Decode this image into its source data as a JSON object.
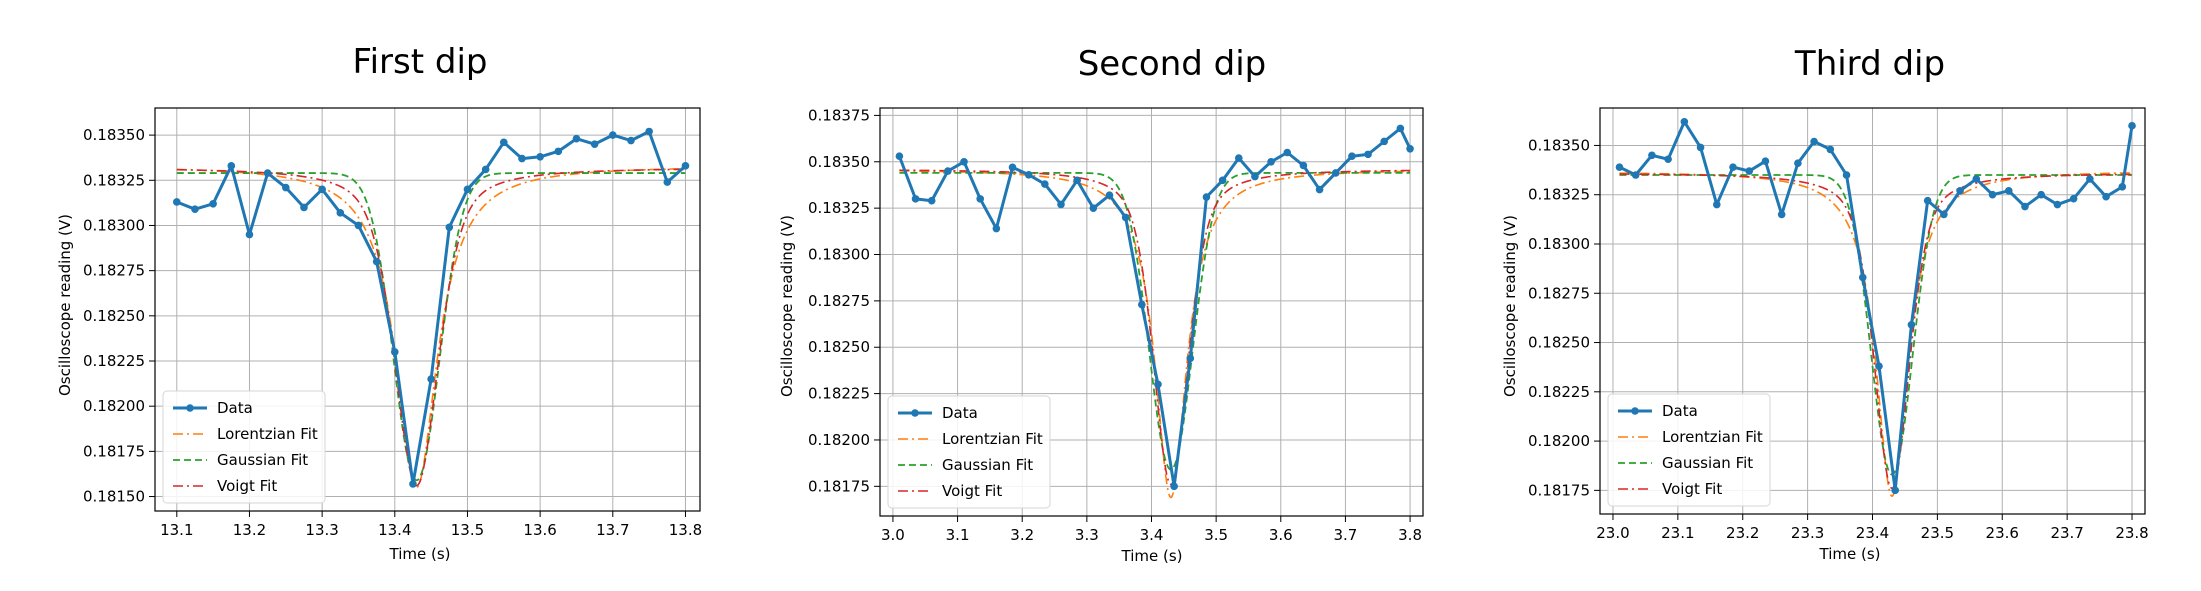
{
  "colors": {
    "data": "#1f77b4",
    "lorentzian": "#ff7f0e",
    "gaussian": "#2ca02c",
    "voigt": "#d62728",
    "grid": "#b0b0b0",
    "axis": "#000000"
  },
  "chart_data": [
    {
      "type": "line",
      "title": "First dip",
      "xlabel": "Time (s)",
      "ylabel": "Oscilloscope reading (V)",
      "xlim": [
        13.07,
        13.82
      ],
      "ylim": [
        0.18142,
        0.18365
      ],
      "xticks": [
        13.1,
        13.2,
        13.3,
        13.4,
        13.5,
        13.6,
        13.7,
        13.8
      ],
      "xtick_labels": [
        "13.1",
        "13.2",
        "13.3",
        "13.4",
        "13.5",
        "13.6",
        "13.7",
        "13.8"
      ],
      "yticks": [
        0.1815,
        0.18175,
        0.182,
        0.18225,
        0.1825,
        0.18275,
        0.183,
        0.18325,
        0.1835
      ],
      "ytick_labels": [
        "0.18150",
        "0.18175",
        "0.18200",
        "0.18225",
        "0.18250",
        "0.18275",
        "0.18300",
        "0.18325",
        "0.18350"
      ],
      "grid": true,
      "legend_position": "lower-left",
      "series": [
        {
          "name": "Data",
          "style": "data",
          "x": [
            13.1,
            13.125,
            13.15,
            13.175,
            13.2,
            13.225,
            13.25,
            13.275,
            13.3,
            13.325,
            13.35,
            13.375,
            13.4,
            13.425,
            13.45,
            13.475,
            13.5,
            13.525,
            13.55,
            13.575,
            13.6,
            13.625,
            13.65,
            13.675,
            13.7,
            13.725,
            13.75,
            13.775,
            13.8
          ],
          "y": [
            0.18313,
            0.18309,
            0.18312,
            0.18333,
            0.18295,
            0.18329,
            0.18321,
            0.1831,
            0.1832,
            0.18307,
            0.183,
            0.1828,
            0.1823,
            0.18157,
            0.18215,
            0.18299,
            0.1832,
            0.18331,
            0.18346,
            0.18337,
            0.18338,
            0.18341,
            0.18348,
            0.18345,
            0.1835,
            0.18347,
            0.18352,
            0.18324,
            0.18333
          ]
        },
        {
          "name": "Lorentzian Fit",
          "style": "lorentzian",
          "params": {
            "kind": "lorentzian",
            "x0": 13.43,
            "w": 0.035,
            "depth": 0.00178,
            "base": 0.18333,
            "slope": 0.0
          }
        },
        {
          "name": "Gaussian Fit",
          "style": "gaussian",
          "params": {
            "kind": "gaussian",
            "x0": 13.43,
            "w": 0.04,
            "depth": 0.0017,
            "base": 0.18329,
            "slope": 0.0
          }
        },
        {
          "name": "Voigt Fit",
          "style": "voigt",
          "params": {
            "kind": "voigt",
            "x0": 13.43,
            "w": 0.038,
            "depth": 0.00176,
            "base": 0.18332,
            "slope": 0.0
          }
        }
      ]
    },
    {
      "type": "line",
      "title": "Second dip",
      "xlabel": "Time (s)",
      "ylabel": "Oscilloscope reading (V)",
      "xlim": [
        2.98,
        3.82
      ],
      "ylim": [
        0.18159,
        0.18379
      ],
      "xticks": [
        3.0,
        3.1,
        3.2,
        3.3,
        3.4,
        3.5,
        3.6,
        3.7,
        3.8
      ],
      "xtick_labels": [
        "3.0",
        "3.1",
        "3.2",
        "3.3",
        "3.4",
        "3.5",
        "3.6",
        "3.7",
        "3.8"
      ],
      "yticks": [
        0.18175,
        0.182,
        0.18225,
        0.1825,
        0.18275,
        0.183,
        0.18325,
        0.1835,
        0.18375
      ],
      "ytick_labels": [
        "0.18175",
        "0.18200",
        "0.18225",
        "0.18250",
        "0.18275",
        "0.18300",
        "0.18325",
        "0.18350",
        "0.18375"
      ],
      "grid": true,
      "legend_position": "lower-left",
      "series": [
        {
          "name": "Data",
          "style": "data",
          "x": [
            3.01,
            3.035,
            3.06,
            3.085,
            3.11,
            3.135,
            3.16,
            3.185,
            3.21,
            3.235,
            3.26,
            3.285,
            3.31,
            3.335,
            3.36,
            3.385,
            3.41,
            3.435,
            3.46,
            3.485,
            3.51,
            3.535,
            3.56,
            3.585,
            3.61,
            3.635,
            3.66,
            3.685,
            3.71,
            3.735,
            3.76,
            3.785,
            3.8
          ],
          "y": [
            0.18353,
            0.1833,
            0.18329,
            0.18345,
            0.1835,
            0.1833,
            0.18314,
            0.18347,
            0.18343,
            0.18338,
            0.18327,
            0.1834,
            0.18325,
            0.18332,
            0.1832,
            0.18273,
            0.1823,
            0.18175,
            0.18244,
            0.18331,
            0.1834,
            0.18352,
            0.18342,
            0.1835,
            0.18355,
            0.18348,
            0.18335,
            0.18344,
            0.18353,
            0.18354,
            0.18361,
            0.18368,
            0.18357
          ]
        },
        {
          "name": "Lorentzian Fit",
          "style": "lorentzian",
          "params": {
            "kind": "lorentzian",
            "x0": 3.43,
            "w": 0.03,
            "depth": 0.00177,
            "base": 0.18346,
            "slope": 0.0
          }
        },
        {
          "name": "Gaussian Fit",
          "style": "gaussian",
          "params": {
            "kind": "gaussian",
            "x0": 3.43,
            "w": 0.042,
            "depth": 0.0016,
            "base": 0.18344,
            "slope": 0.0
          }
        },
        {
          "name": "Voigt Fit",
          "style": "voigt",
          "params": {
            "kind": "voigt",
            "x0": 3.43,
            "w": 0.034,
            "depth": 0.0017,
            "base": 0.18346,
            "slope": 0.0
          }
        }
      ]
    },
    {
      "type": "line",
      "title": "Third dip",
      "xlabel": "Time (s)",
      "ylabel": "Oscilloscope reading (V)",
      "xlim": [
        22.98,
        23.82
      ],
      "ylim": [
        0.18163,
        0.18369
      ],
      "xticks": [
        23.0,
        23.1,
        23.2,
        23.3,
        23.4,
        23.5,
        23.6,
        23.7,
        23.8
      ],
      "xtick_labels": [
        "23.0",
        "23.1",
        "23.2",
        "23.3",
        "23.4",
        "23.5",
        "23.6",
        "23.7",
        "23.8"
      ],
      "yticks": [
        0.18175,
        0.182,
        0.18225,
        0.1825,
        0.18275,
        0.183,
        0.18325,
        0.1835
      ],
      "ytick_labels": [
        "0.18175",
        "0.18200",
        "0.18225",
        "0.18250",
        "0.18275",
        "0.18300",
        "0.18325",
        "0.18350"
      ],
      "grid": true,
      "legend_position": "lower-left",
      "series": [
        {
          "name": "Data",
          "style": "data",
          "x": [
            23.01,
            23.035,
            23.06,
            23.085,
            23.11,
            23.135,
            23.16,
            23.185,
            23.21,
            23.235,
            23.26,
            23.285,
            23.31,
            23.335,
            23.36,
            23.385,
            23.41,
            23.435,
            23.46,
            23.485,
            23.51,
            23.535,
            23.56,
            23.585,
            23.61,
            23.635,
            23.66,
            23.685,
            23.71,
            23.735,
            23.76,
            23.785,
            23.8
          ],
          "y": [
            0.18339,
            0.18335,
            0.18345,
            0.18343,
            0.18362,
            0.18349,
            0.1832,
            0.18339,
            0.18337,
            0.18342,
            0.18315,
            0.18341,
            0.18352,
            0.18348,
            0.18335,
            0.18283,
            0.18238,
            0.18175,
            0.18259,
            0.18322,
            0.18315,
            0.18327,
            0.18333,
            0.18325,
            0.18327,
            0.18319,
            0.18325,
            0.1832,
            0.18323,
            0.18333,
            0.18324,
            0.18329,
            0.1836
          ]
        },
        {
          "name": "Lorentzian Fit",
          "style": "lorentzian",
          "params": {
            "kind": "lorentzian",
            "x0": 23.43,
            "w": 0.03,
            "depth": 0.00165,
            "base": 0.18337,
            "slope": 5e-06
          }
        },
        {
          "name": "Gaussian Fit",
          "style": "gaussian",
          "params": {
            "kind": "gaussian",
            "x0": 23.43,
            "w": 0.04,
            "depth": 0.00152,
            "base": 0.18335,
            "slope": 0.0
          }
        },
        {
          "name": "Voigt Fit",
          "style": "voigt",
          "params": {
            "kind": "voigt",
            "x0": 23.43,
            "w": 0.034,
            "depth": 0.0016,
            "base": 0.18336,
            "slope": 0.0
          }
        }
      ]
    }
  ]
}
